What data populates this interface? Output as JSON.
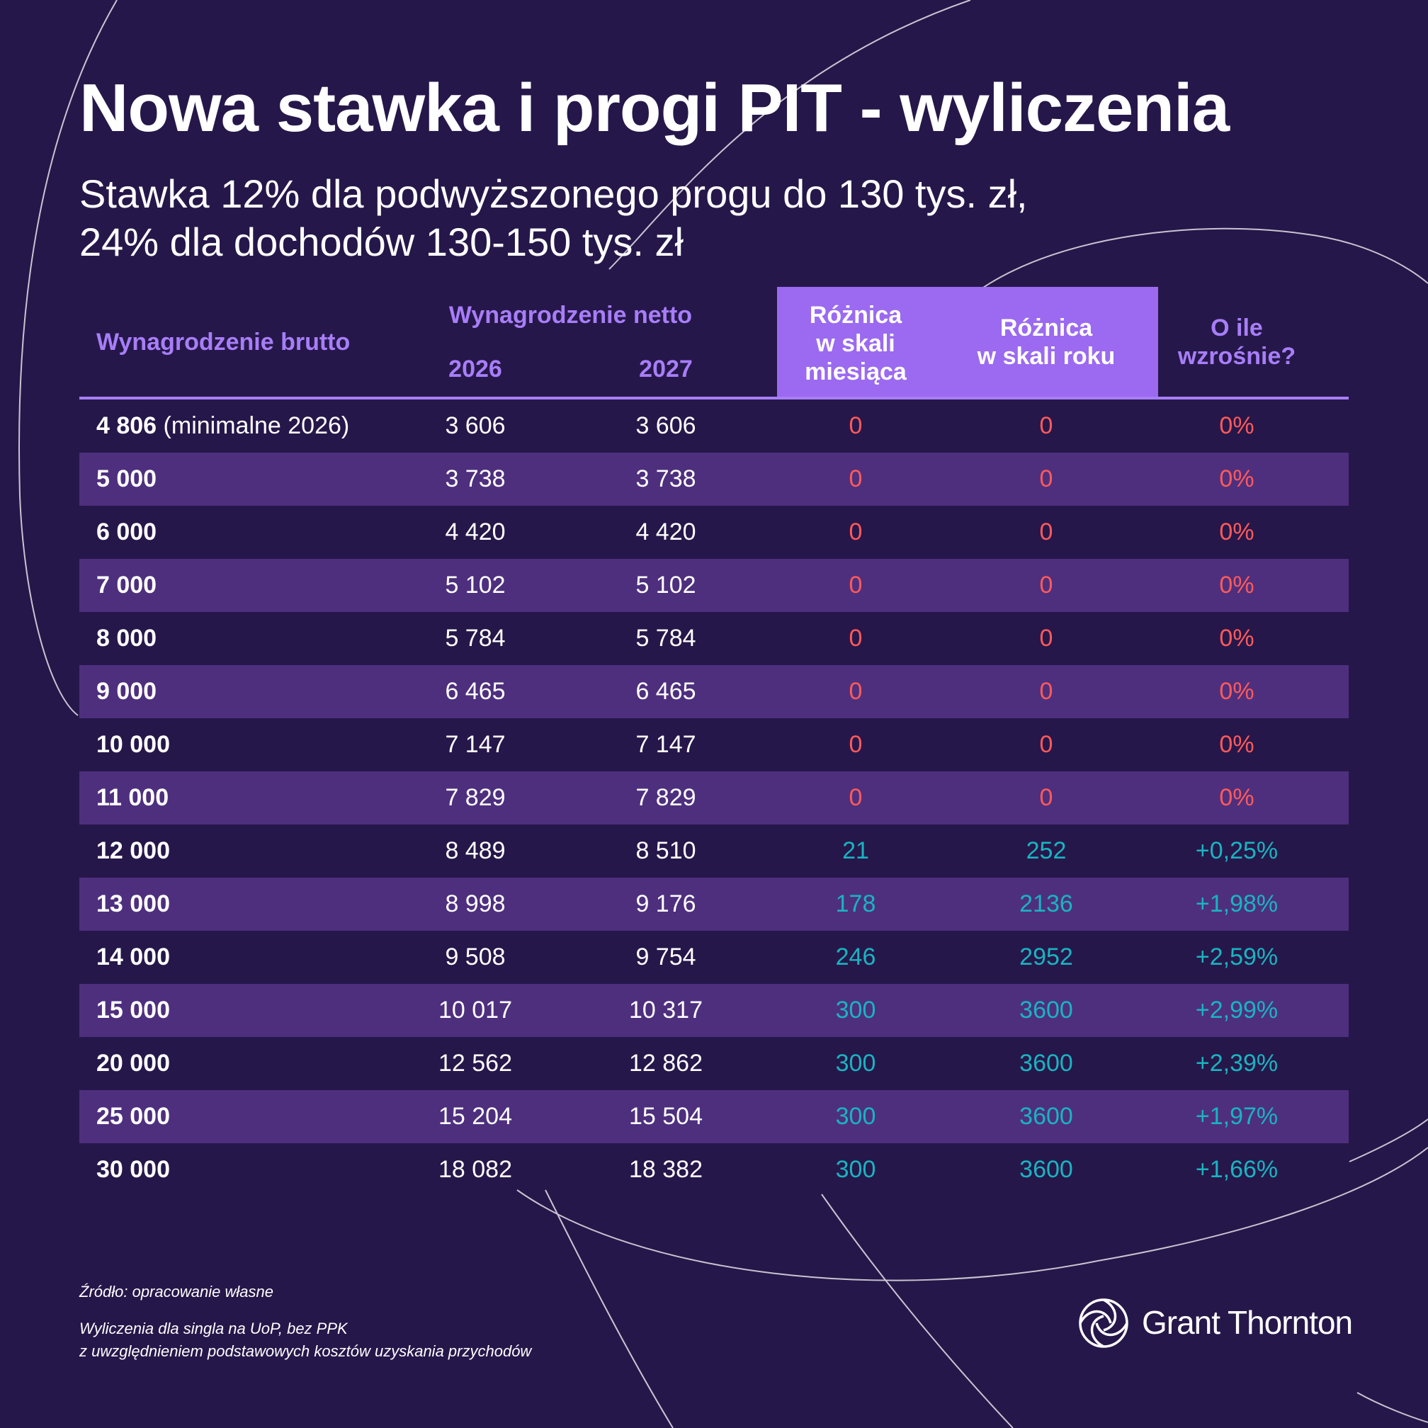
{
  "title": "Nowa stawka i progi PIT - wyliczenia",
  "subtitle": {
    "line1": "Stawka 12% dla podwyższonego progu do 130 tys. zł,",
    "line2": "24% dla dochodów 130-150 tys. zł"
  },
  "table": {
    "headers": {
      "gross": "Wynagrodzenie brutto",
      "net": "Wynagrodzenie netto",
      "year_2026": "2026",
      "year_2027": "2027",
      "monthly_diff": [
        "Różnica",
        "w skali",
        "miesiąca"
      ],
      "yearly_diff": [
        "Różnica",
        "w skali roku"
      ],
      "increase": [
        "O ile",
        "wzrośnie?"
      ]
    },
    "rows": [
      {
        "gross": "4 806",
        "note": "(minimalne 2026)",
        "net2026": "3 606",
        "net2027": "3 606",
        "monthly": "0",
        "yearly": "0",
        "pct": "0%"
      },
      {
        "gross": "5 000",
        "note": "",
        "net2026": "3 738",
        "net2027": "3 738",
        "monthly": "0",
        "yearly": "0",
        "pct": "0%"
      },
      {
        "gross": "6 000",
        "note": "",
        "net2026": "4 420",
        "net2027": "4 420",
        "monthly": "0",
        "yearly": "0",
        "pct": "0%"
      },
      {
        "gross": "7 000",
        "note": "",
        "net2026": "5 102",
        "net2027": "5 102",
        "monthly": "0",
        "yearly": "0",
        "pct": "0%"
      },
      {
        "gross": "8 000",
        "note": "",
        "net2026": "5 784",
        "net2027": "5 784",
        "monthly": "0",
        "yearly": "0",
        "pct": "0%"
      },
      {
        "gross": "9 000",
        "note": "",
        "net2026": "6 465",
        "net2027": "6 465",
        "monthly": "0",
        "yearly": "0",
        "pct": "0%"
      },
      {
        "gross": "10 000",
        "note": "",
        "net2026": "7 147",
        "net2027": "7 147",
        "monthly": "0",
        "yearly": "0",
        "pct": "0%"
      },
      {
        "gross": "11 000",
        "note": "",
        "net2026": "7 829",
        "net2027": "7 829",
        "monthly": "0",
        "yearly": "0",
        "pct": "0%"
      },
      {
        "gross": "12 000",
        "note": "",
        "net2026": "8 489",
        "net2027": "8 510",
        "monthly": "21",
        "yearly": "252",
        "pct": "+0,25%"
      },
      {
        "gross": "13 000",
        "note": "",
        "net2026": "8 998",
        "net2027": "9 176",
        "monthly": "178",
        "yearly": "2136",
        "pct": "+1,98%"
      },
      {
        "gross": "14 000",
        "note": "",
        "net2026": "9 508",
        "net2027": "9 754",
        "monthly": "246",
        "yearly": "2952",
        "pct": "+2,59%"
      },
      {
        "gross": "15 000",
        "note": "",
        "net2026": "10 017",
        "net2027": "10 317",
        "monthly": "300",
        "yearly": "3600",
        "pct": "+2,99%"
      },
      {
        "gross": "20 000",
        "note": "",
        "net2026": "12 562",
        "net2027": "12 862",
        "monthly": "300",
        "yearly": "3600",
        "pct": "+2,39%"
      },
      {
        "gross": "25 000",
        "note": "",
        "net2026": "15 204",
        "net2027": "15 504",
        "monthly": "300",
        "yearly": "3600",
        "pct": "+1,97%"
      },
      {
        "gross": "30 000",
        "note": "",
        "net2026": "18 082",
        "net2027": "18 382",
        "monthly": "300",
        "yearly": "3600",
        "pct": "+1,66%"
      }
    ]
  },
  "footer": {
    "source": "Źródło: opracowanie własne",
    "note_line1": "Wyliczenia dla singla na UoP, bez PPK",
    "note_line2": "z uwzględnieniem podstawowych kosztów uzyskania przychodów"
  },
  "logo": {
    "text": "Grant Thornton",
    "icon": "grant-thornton-swirl-icon"
  },
  "colors": {
    "background": "#26174a",
    "row_shade": "#4e2f7e",
    "accent_purple": "#a77ef7",
    "highlight_box": "#9b6af0",
    "zero_value": "#ff5a5a",
    "positive_value": "#19b4c0"
  }
}
